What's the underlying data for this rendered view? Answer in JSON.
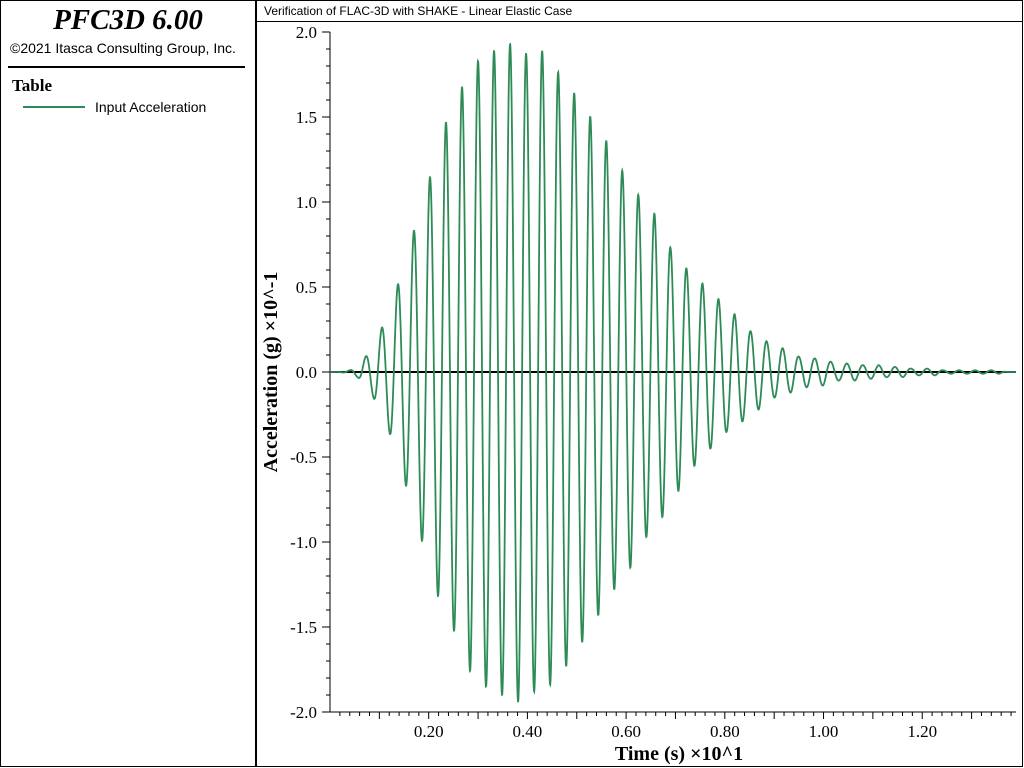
{
  "app": {
    "title": "PFC3D 6.00",
    "copyright": "©2021 Itasca Consulting Group, Inc."
  },
  "legend": {
    "heading": "Table",
    "items": [
      {
        "label": "Input Acceleration",
        "color": "#2e8b57"
      }
    ]
  },
  "plot": {
    "title": "Verification of FLAC-3D with SHAKE - Linear Elastic Case"
  },
  "chart_data": {
    "type": "line",
    "xlabel": "Time (s) ×10^1",
    "ylabel": "Acceleration (g) ×10^-1",
    "xlim": [
      0,
      1.39
    ],
    "ylim": [
      -2.0,
      2.0
    ],
    "x_ticks": [
      0.2,
      0.4,
      0.6,
      0.8,
      1.0,
      1.2
    ],
    "x_tick_labels": [
      "0.20",
      "0.40",
      "0.60",
      "0.80",
      "1.00",
      "1.20"
    ],
    "y_ticks": [
      2.0,
      1.5,
      1.0,
      0.5,
      0.0,
      -0.5,
      -1.0,
      -1.5,
      -2.0
    ],
    "y_tick_labels": [
      "2.0",
      "1.5",
      "1.0",
      "0.5",
      "0.0",
      "-0.5",
      "-1.0",
      "-1.5",
      "-2.0"
    ],
    "zero_line": true,
    "grid": false,
    "series": [
      {
        "name": "Input Acceleration",
        "color": "#2e8b57",
        "peaks": [
          {
            "t": 0.04,
            "v": 0.01
          },
          {
            "t": 0.056,
            "v": -0.03
          },
          {
            "t": 0.072,
            "v": 0.09
          },
          {
            "t": 0.088,
            "v": -0.15
          },
          {
            "t": 0.105,
            "v": 0.26
          },
          {
            "t": 0.121,
            "v": -0.36
          },
          {
            "t": 0.137,
            "v": 0.51
          },
          {
            "t": 0.154,
            "v": -0.67
          },
          {
            "t": 0.17,
            "v": 0.83
          },
          {
            "t": 0.186,
            "v": -0.99
          },
          {
            "t": 0.203,
            "v": 1.15
          },
          {
            "t": 0.219,
            "v": -1.32
          },
          {
            "t": 0.235,
            "v": 1.47
          },
          {
            "t": 0.251,
            "v": -1.52
          },
          {
            "t": 0.268,
            "v": 1.68
          },
          {
            "t": 0.284,
            "v": -1.76
          },
          {
            "t": 0.3,
            "v": 1.83
          },
          {
            "t": 0.316,
            "v": -1.85
          },
          {
            "t": 0.333,
            "v": 1.89
          },
          {
            "t": 0.349,
            "v": -1.9
          },
          {
            "t": 0.365,
            "v": 1.93
          },
          {
            "t": 0.381,
            "v": -1.94
          },
          {
            "t": 0.398,
            "v": 1.87
          },
          {
            "t": 0.414,
            "v": -1.88
          },
          {
            "t": 0.43,
            "v": 1.89
          },
          {
            "t": 0.446,
            "v": -1.84
          },
          {
            "t": 0.463,
            "v": 1.76
          },
          {
            "t": 0.479,
            "v": -1.73
          },
          {
            "t": 0.495,
            "v": 1.64
          },
          {
            "t": 0.511,
            "v": -1.59
          },
          {
            "t": 0.528,
            "v": 1.5
          },
          {
            "t": 0.544,
            "v": -1.43
          },
          {
            "t": 0.56,
            "v": 1.36
          },
          {
            "t": 0.576,
            "v": -1.28
          },
          {
            "t": 0.593,
            "v": 1.18
          },
          {
            "t": 0.609,
            "v": -1.15
          },
          {
            "t": 0.625,
            "v": 1.04
          },
          {
            "t": 0.641,
            "v": -0.97
          },
          {
            "t": 0.658,
            "v": 0.93
          },
          {
            "t": 0.674,
            "v": -0.85
          },
          {
            "t": 0.69,
            "v": 0.73
          },
          {
            "t": 0.706,
            "v": -0.7
          },
          {
            "t": 0.722,
            "v": 0.61
          },
          {
            "t": 0.739,
            "v": -0.55
          },
          {
            "t": 0.755,
            "v": 0.52
          },
          {
            "t": 0.771,
            "v": -0.45
          },
          {
            "t": 0.787,
            "v": 0.43
          },
          {
            "t": 0.804,
            "v": -0.35
          },
          {
            "t": 0.82,
            "v": 0.34
          },
          {
            "t": 0.836,
            "v": -0.29
          },
          {
            "t": 0.852,
            "v": 0.24
          },
          {
            "t": 0.869,
            "v": -0.22
          },
          {
            "t": 0.885,
            "v": 0.18
          },
          {
            "t": 0.901,
            "v": -0.15
          },
          {
            "t": 0.917,
            "v": 0.14
          },
          {
            "t": 0.934,
            "v": -0.12
          },
          {
            "t": 0.95,
            "v": 0.09
          },
          {
            "t": 0.966,
            "v": -0.09
          },
          {
            "t": 0.982,
            "v": 0.08
          },
          {
            "t": 0.999,
            "v": -0.08
          },
          {
            "t": 1.015,
            "v": 0.06
          },
          {
            "t": 1.031,
            "v": -0.05
          },
          {
            "t": 1.047,
            "v": 0.05
          },
          {
            "t": 1.064,
            "v": -0.05
          },
          {
            "t": 1.08,
            "v": 0.04
          },
          {
            "t": 1.096,
            "v": -0.04
          },
          {
            "t": 1.112,
            "v": 0.04
          },
          {
            "t": 1.129,
            "v": -0.03
          },
          {
            "t": 1.145,
            "v": 0.03
          },
          {
            "t": 1.161,
            "v": -0.03
          },
          {
            "t": 1.177,
            "v": 0.02
          },
          {
            "t": 1.194,
            "v": -0.02
          },
          {
            "t": 1.21,
            "v": 0.02
          },
          {
            "t": 1.226,
            "v": -0.02
          },
          {
            "t": 1.242,
            "v": 0.01
          },
          {
            "t": 1.259,
            "v": -0.01
          },
          {
            "t": 1.275,
            "v": 0.01
          },
          {
            "t": 1.291,
            "v": -0.01
          },
          {
            "t": 1.307,
            "v": 0.01
          },
          {
            "t": 1.324,
            "v": -0.01
          },
          {
            "t": 1.34,
            "v": 0.01
          },
          {
            "t": 1.356,
            "v": -0.01
          },
          {
            "t": 1.372,
            "v": 0.0
          }
        ]
      }
    ]
  }
}
